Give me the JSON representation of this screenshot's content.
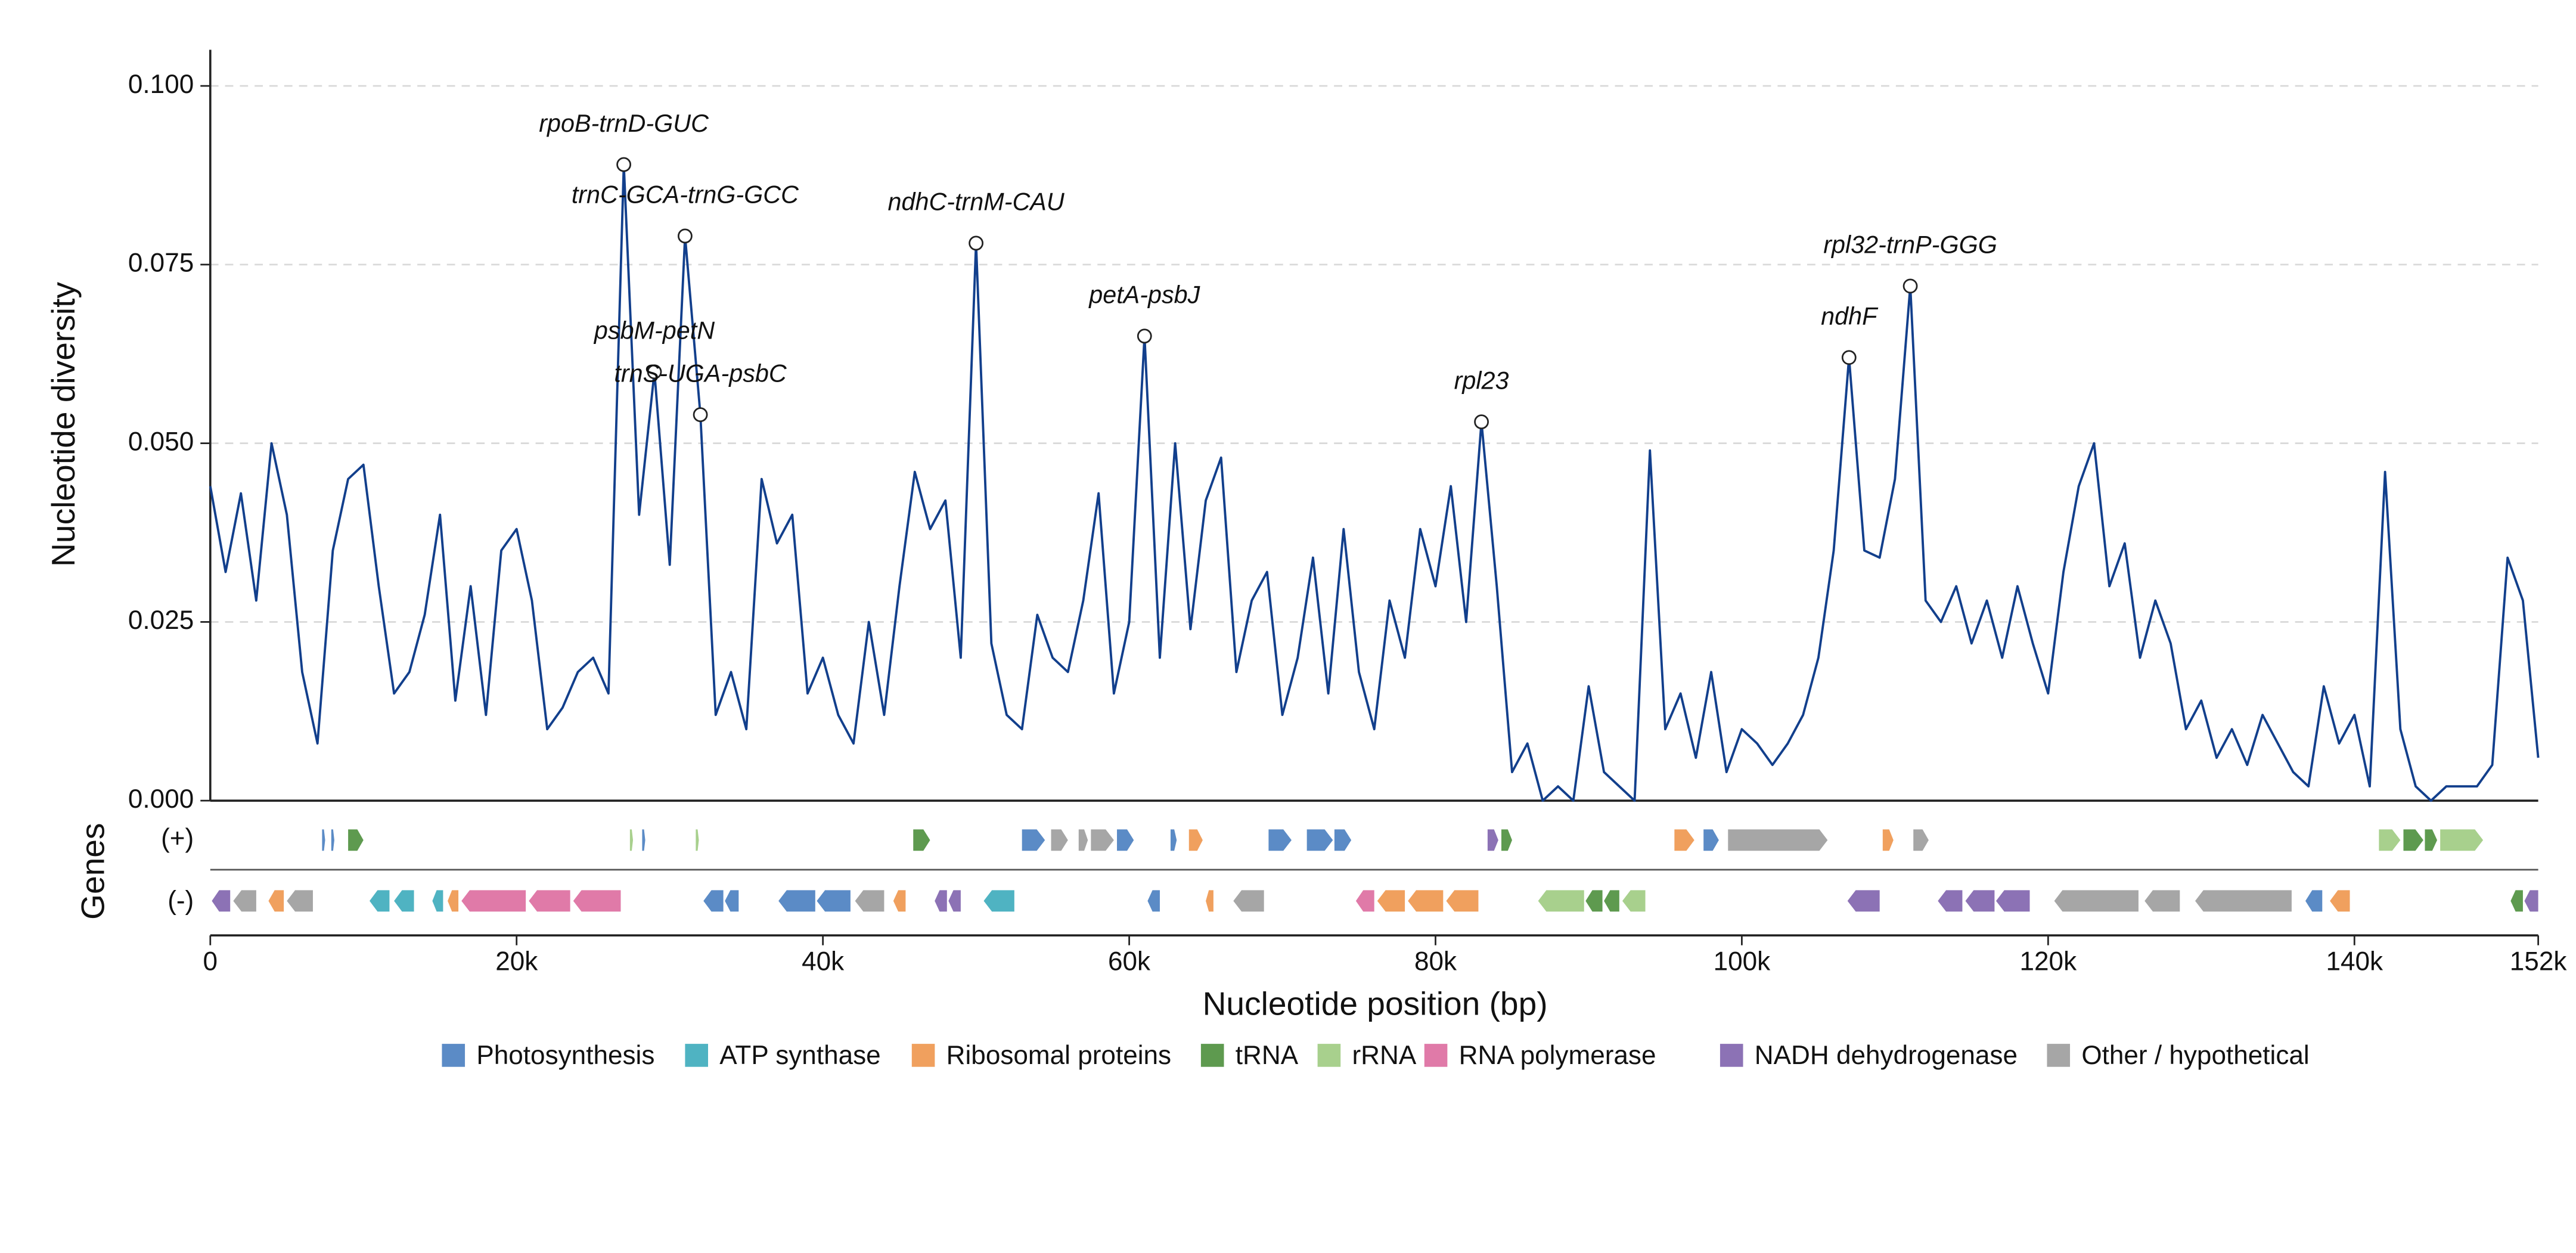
{
  "chart_data": {
    "type": "line",
    "xlabel": "Nucleotide position (bp)",
    "ylabel": "Nucleotide diversity",
    "track_label": "Genes",
    "strand_labels": {
      "plus": "(+)",
      "minus": "(-)"
    },
    "color": "#123f8c",
    "grid": true,
    "xlim": [
      0,
      152000
    ],
    "ylim": [
      0,
      0.1
    ],
    "xticks": [
      0,
      {
        "value": 20000,
        "label": "20k"
      },
      {
        "value": 40000,
        "label": "40k"
      },
      {
        "value": 60000,
        "label": "60k"
      },
      {
        "value": 80000,
        "label": "80k"
      },
      {
        "value": 100000,
        "label": "100k"
      },
      {
        "value": 120000,
        "label": "120k"
      },
      {
        "value": 140000,
        "label": "140k"
      },
      {
        "value": 152000,
        "label": "152k"
      }
    ],
    "yticks": [
      {
        "value": 0,
        "label": "0.000"
      },
      {
        "value": 0.025,
        "label": "0.025"
      },
      {
        "value": 0.05,
        "label": "0.050"
      },
      {
        "value": 0.075,
        "label": "0.075"
      },
      {
        "value": 0.1,
        "label": "0.100"
      }
    ],
    "x": [
      0,
      1000,
      2000,
      3000,
      4000,
      5000,
      6000,
      7000,
      8000,
      9000,
      10000,
      11000,
      12000,
      13000,
      14000,
      15000,
      16000,
      17000,
      18000,
      19000,
      20000,
      21000,
      22000,
      23000,
      24000,
      25000,
      26000,
      27000,
      28000,
      29000,
      30000,
      31000,
      32000,
      33000,
      34000,
      35000,
      36000,
      37000,
      38000,
      39000,
      40000,
      41000,
      42000,
      43000,
      44000,
      45000,
      46000,
      47000,
      48000,
      49000,
      50000,
      51000,
      52000,
      53000,
      54000,
      55000,
      56000,
      57000,
      58000,
      59000,
      60000,
      61000,
      62000,
      63000,
      64000,
      65000,
      66000,
      67000,
      68000,
      69000,
      70000,
      71000,
      72000,
      73000,
      74000,
      75000,
      76000,
      77000,
      78000,
      79000,
      80000,
      81000,
      82000,
      83000,
      84000,
      85000,
      86000,
      87000,
      88000,
      89000,
      90000,
      91000,
      92000,
      93000,
      94000,
      95000,
      96000,
      97000,
      98000,
      99000,
      100000,
      101000,
      102000,
      103000,
      104000,
      105000,
      106000,
      107000,
      108000,
      109000,
      110000,
      111000,
      112000,
      113000,
      114000,
      115000,
      116000,
      117000,
      118000,
      119000,
      120000,
      121000,
      122000,
      123000,
      124000,
      125000,
      126000,
      127000,
      128000,
      129000,
      130000,
      131000,
      132000,
      133000,
      134000,
      135000,
      136000,
      137000,
      138000,
      139000,
      140000,
      141000,
      142000,
      143000,
      144000,
      145000,
      146000,
      147000,
      148000,
      149000,
      150000,
      151000,
      152000
    ],
    "values": [
      0.044,
      0.032,
      0.043,
      0.028,
      0.05,
      0.04,
      0.018,
      0.008,
      0.035,
      0.045,
      0.047,
      0.03,
      0.015,
      0.018,
      0.026,
      0.04,
      0.014,
      0.03,
      0.012,
      0.035,
      0.038,
      0.028,
      0.01,
      0.013,
      0.018,
      0.02,
      0.015,
      0.089,
      0.04,
      0.06,
      0.033,
      0.079,
      0.054,
      0.012,
      0.018,
      0.01,
      0.045,
      0.036,
      0.04,
      0.015,
      0.02,
      0.012,
      0.008,
      0.025,
      0.012,
      0.03,
      0.046,
      0.038,
      0.042,
      0.02,
      0.078,
      0.022,
      0.012,
      0.01,
      0.026,
      0.02,
      0.018,
      0.028,
      0.043,
      0.015,
      0.025,
      0.065,
      0.02,
      0.05,
      0.024,
      0.042,
      0.048,
      0.018,
      0.028,
      0.032,
      0.012,
      0.02,
      0.034,
      0.015,
      0.038,
      0.018,
      0.01,
      0.028,
      0.02,
      0.038,
      0.03,
      0.044,
      0.025,
      0.053,
      0.03,
      0.004,
      0.008,
      0.0,
      0.002,
      0.0,
      0.016,
      0.004,
      0.002,
      0.0,
      0.049,
      0.01,
      0.015,
      0.006,
      0.018,
      0.004,
      0.01,
      0.008,
      0.005,
      0.008,
      0.012,
      0.02,
      0.035,
      0.062,
      0.035,
      0.034,
      0.045,
      0.072,
      0.028,
      0.025,
      0.03,
      0.022,
      0.028,
      0.02,
      0.03,
      0.022,
      0.015,
      0.032,
      0.044,
      0.05,
      0.03,
      0.036,
      0.02,
      0.028,
      0.022,
      0.01,
      0.014,
      0.006,
      0.01,
      0.005,
      0.012,
      0.008,
      0.004,
      0.002,
      0.016,
      0.008,
      0.012,
      0.002,
      0.046,
      0.01,
      0.002,
      0.0,
      0.002,
      0.002,
      0.002,
      0.005,
      0.034,
      0.028,
      0.006
    ],
    "annotations": [
      {
        "label": "rpoB-trnD-GUC",
        "x": 27000,
        "y": 0.089
      },
      {
        "label": "trnC-GCA-trnG-GCC",
        "x": 31000,
        "y": 0.079
      },
      {
        "label": "psbM-petN",
        "x": 29000,
        "y": 0.06
      },
      {
        "label": "trnS-UGA-psbC",
        "x": 32000,
        "y": 0.054
      },
      {
        "label": "ndhC-trnM-CAU",
        "x": 50000,
        "y": 0.078
      },
      {
        "label": "petA-psbJ",
        "x": 61000,
        "y": 0.065
      },
      {
        "label": "rpl23",
        "x": 83000,
        "y": 0.053
      },
      {
        "label": "ndhF",
        "x": 107000,
        "y": 0.062
      },
      {
        "label": "rpl32-trnP-GGG",
        "x": 111000,
        "y": 0.072
      }
    ],
    "legend": [
      {
        "name": "Photosynthesis",
        "color": "#5b8bc6"
      },
      {
        "name": "ATP synthase",
        "color": "#4fb3c2"
      },
      {
        "name": "Ribosomal proteins",
        "color": "#f0a05e"
      },
      {
        "name": "tRNA",
        "color": "#5e9a4f"
      },
      {
        "name": "rRNA",
        "color": "#a8d08d"
      },
      {
        "name": "RNA polymerase",
        "color": "#e07aa8"
      },
      {
        "name": "NADH dehydrogenase",
        "color": "#8c72b5"
      },
      {
        "name": "Other / hypothetical",
        "color": "#a6a6a6"
      }
    ],
    "genes": [
      {
        "start": 7300,
        "end": 7500,
        "strand": "+",
        "category": 0
      },
      {
        "start": 7900,
        "end": 8100,
        "strand": "+",
        "category": 0
      },
      {
        "start": 9000,
        "end": 10000,
        "strand": "+",
        "category": 3
      },
      {
        "start": 27400,
        "end": 27600,
        "strand": "+",
        "category": 4
      },
      {
        "start": 28200,
        "end": 28400,
        "strand": "+",
        "category": 0
      },
      {
        "start": 31700,
        "end": 31900,
        "strand": "+",
        "category": 4
      },
      {
        "start": 45900,
        "end": 47000,
        "strand": "+",
        "category": 3
      },
      {
        "start": 53000,
        "end": 54500,
        "strand": "+",
        "category": 0
      },
      {
        "start": 54900,
        "end": 56000,
        "strand": "+",
        "category": 7
      },
      {
        "start": 56700,
        "end": 57300,
        "strand": "+",
        "category": 7
      },
      {
        "start": 57500,
        "end": 59000,
        "strand": "+",
        "category": 7
      },
      {
        "start": 59200,
        "end": 60300,
        "strand": "+",
        "category": 0
      },
      {
        "start": 62700,
        "end": 63100,
        "strand": "+",
        "category": 0
      },
      {
        "start": 63900,
        "end": 64800,
        "strand": "+",
        "category": 2
      },
      {
        "start": 69100,
        "end": 70600,
        "strand": "+",
        "category": 0
      },
      {
        "start": 71600,
        "end": 73300,
        "strand": "+",
        "category": 0
      },
      {
        "start": 73400,
        "end": 74500,
        "strand": "+",
        "category": 0
      },
      {
        "start": 83400,
        "end": 84100,
        "strand": "+",
        "category": 6
      },
      {
        "start": 84300,
        "end": 85000,
        "strand": "+",
        "category": 3
      },
      {
        "start": 95600,
        "end": 96900,
        "strand": "+",
        "category": 2
      },
      {
        "start": 97500,
        "end": 98500,
        "strand": "+",
        "category": 0
      },
      {
        "start": 99100,
        "end": 105600,
        "strand": "+",
        "category": 7
      },
      {
        "start": 109200,
        "end": 109900,
        "strand": "+",
        "category": 2
      },
      {
        "start": 111200,
        "end": 112200,
        "strand": "+",
        "category": 7
      },
      {
        "start": 141600,
        "end": 143000,
        "strand": "+",
        "category": 4
      },
      {
        "start": 143200,
        "end": 144500,
        "strand": "+",
        "category": 3
      },
      {
        "start": 144600,
        "end": 145400,
        "strand": "+",
        "category": 3
      },
      {
        "start": 145600,
        "end": 148400,
        "strand": "+",
        "category": 4
      },
      {
        "start": 100,
        "end": 1300,
        "strand": "-",
        "category": 6
      },
      {
        "start": 1500,
        "end": 3000,
        "strand": "-",
        "category": 7
      },
      {
        "start": 3800,
        "end": 4800,
        "strand": "-",
        "category": 2
      },
      {
        "start": 5000,
        "end": 6700,
        "strand": "-",
        "category": 7
      },
      {
        "start": 10400,
        "end": 11700,
        "strand": "-",
        "category": 1
      },
      {
        "start": 12000,
        "end": 13300,
        "strand": "-",
        "category": 1
      },
      {
        "start": 14500,
        "end": 15200,
        "strand": "-",
        "category": 1
      },
      {
        "start": 15500,
        "end": 16200,
        "strand": "-",
        "category": 2
      },
      {
        "start": 16400,
        "end": 20600,
        "strand": "-",
        "category": 5
      },
      {
        "start": 20800,
        "end": 23500,
        "strand": "-",
        "category": 5
      },
      {
        "start": 23700,
        "end": 26800,
        "strand": "-",
        "category": 5
      },
      {
        "start": 32200,
        "end": 33500,
        "strand": "-",
        "category": 0
      },
      {
        "start": 33600,
        "end": 34500,
        "strand": "-",
        "category": 0
      },
      {
        "start": 37100,
        "end": 39500,
        "strand": "-",
        "category": 0
      },
      {
        "start": 39600,
        "end": 41800,
        "strand": "-",
        "category": 0
      },
      {
        "start": 42100,
        "end": 44000,
        "strand": "-",
        "category": 7
      },
      {
        "start": 44600,
        "end": 45400,
        "strand": "-",
        "category": 2
      },
      {
        "start": 47300,
        "end": 48100,
        "strand": "-",
        "category": 6
      },
      {
        "start": 48200,
        "end": 49000,
        "strand": "-",
        "category": 6
      },
      {
        "start": 50500,
        "end": 52500,
        "strand": "-",
        "category": 1
      },
      {
        "start": 61200,
        "end": 62000,
        "strand": "-",
        "category": 0
      },
      {
        "start": 65000,
        "end": 65500,
        "strand": "-",
        "category": 2
      },
      {
        "start": 66800,
        "end": 68800,
        "strand": "-",
        "category": 7
      },
      {
        "start": 74800,
        "end": 76000,
        "strand": "-",
        "category": 5
      },
      {
        "start": 76200,
        "end": 78000,
        "strand": "-",
        "category": 2
      },
      {
        "start": 78200,
        "end": 80500,
        "strand": "-",
        "category": 2
      },
      {
        "start": 80700,
        "end": 82800,
        "strand": "-",
        "category": 2
      },
      {
        "start": 86700,
        "end": 89700,
        "strand": "-",
        "category": 4
      },
      {
        "start": 89800,
        "end": 90900,
        "strand": "-",
        "category": 3
      },
      {
        "start": 91000,
        "end": 92000,
        "strand": "-",
        "category": 3
      },
      {
        "start": 92200,
        "end": 93700,
        "strand": "-",
        "category": 4
      },
      {
        "start": 106900,
        "end": 109000,
        "strand": "-",
        "category": 6
      },
      {
        "start": 112800,
        "end": 114400,
        "strand": "-",
        "category": 6
      },
      {
        "start": 114600,
        "end": 116500,
        "strand": "-",
        "category": 6
      },
      {
        "start": 116600,
        "end": 118800,
        "strand": "-",
        "category": 6
      },
      {
        "start": 120400,
        "end": 125900,
        "strand": "-",
        "category": 7
      },
      {
        "start": 126300,
        "end": 128600,
        "strand": "-",
        "category": 7
      },
      {
        "start": 129600,
        "end": 135900,
        "strand": "-",
        "category": 7
      },
      {
        "start": 136800,
        "end": 137900,
        "strand": "-",
        "category": 0
      },
      {
        "start": 138400,
        "end": 139700,
        "strand": "-",
        "category": 2
      },
      {
        "start": 150200,
        "end": 151000,
        "strand": "-",
        "category": 3
      },
      {
        "start": 151100,
        "end": 152000,
        "strand": "-",
        "category": 6
      }
    ]
  }
}
